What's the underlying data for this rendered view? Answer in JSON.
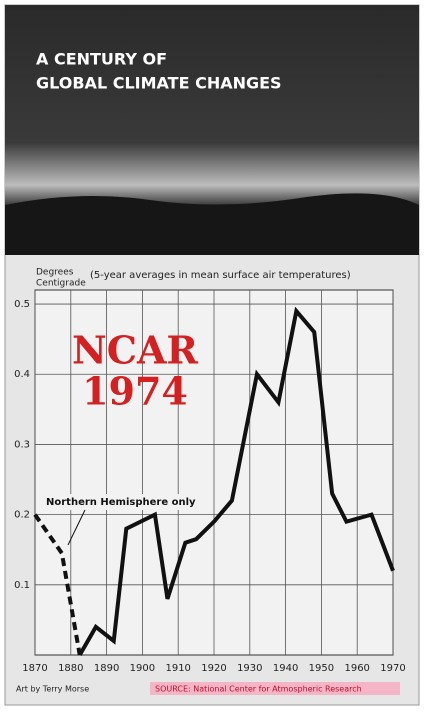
{
  "chart_data": {
    "type": "line",
    "title": [
      "A CENTURY OF",
      "GLOBAL CLIMATE CHANGES"
    ],
    "y_label": [
      "Degrees",
      "Centigrade"
    ],
    "subtitle": "(5-year averages in mean surface air temperatures)",
    "stamp": [
      "NCAR",
      "1974"
    ],
    "credit": "Art by Terry Morse",
    "source": "SOURCE: National Center for Atmospheric Research",
    "xlim": [
      1870,
      1970
    ],
    "ylim": [
      0,
      0.52
    ],
    "xticks": [
      1870,
      1880,
      1890,
      1900,
      1910,
      1920,
      1930,
      1940,
      1950,
      1960,
      1970
    ],
    "yticks": [
      0.1,
      0.2,
      0.3,
      0.4,
      0.5
    ],
    "grid": true,
    "series": [
      {
        "color": "#111111",
        "dashed": false,
        "x": [
          1882.5,
          1887,
          1892,
          1895.5,
          1903.5,
          1907,
          1912,
          1915,
          1920,
          1925,
          1932,
          1938,
          1943,
          1948,
          1953,
          1957,
          1964,
          1970
        ],
        "values": [
          0.0,
          0.04,
          0.02,
          0.18,
          0.2,
          0.08,
          0.16,
          0.165,
          0.19,
          0.22,
          0.4,
          0.36,
          0.49,
          0.46,
          0.23,
          0.19,
          0.2,
          0.12
        ]
      },
      {
        "name": "Northern Hemisphere only",
        "color": "#111111",
        "dashed": true,
        "x": [
          1870,
          1877.5,
          1882.5
        ],
        "values": [
          0.2,
          0.145,
          0.0
        ]
      }
    ]
  }
}
